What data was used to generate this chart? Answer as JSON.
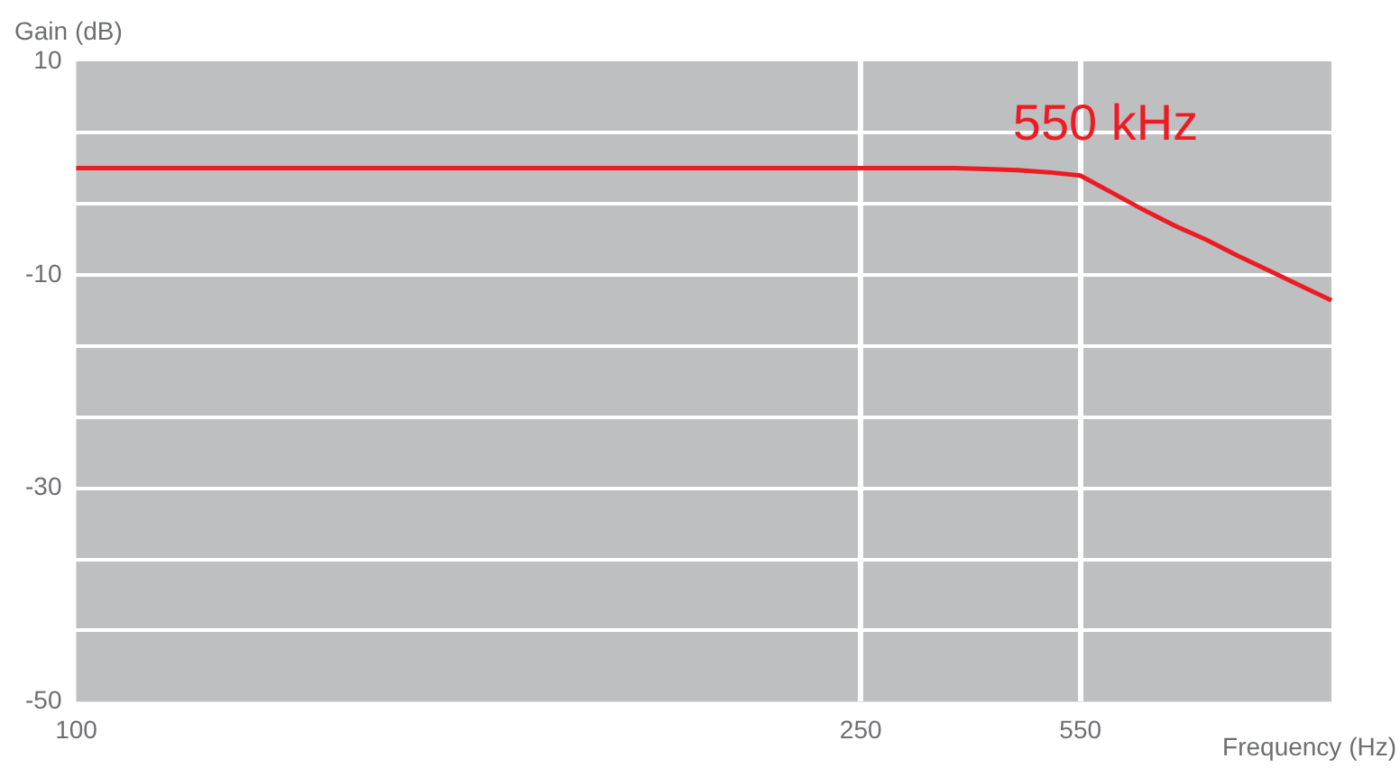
{
  "chart_data": {
    "type": "line",
    "xlabel": "Frequency (Hz)",
    "ylabel": "Gain (dB)",
    "categories": [
      "100",
      null,
      null,
      null,
      null,
      null,
      null,
      null,
      null,
      null,
      null,
      null,
      null,
      null,
      null,
      null,
      null,
      null,
      null,
      null,
      null,
      null,
      null,
      null,
      null,
      "250",
      null,
      null,
      null,
      null,
      null,
      null,
      "550",
      null,
      null,
      null,
      null,
      null,
      null,
      null,
      null
    ],
    "series": [
      {
        "color": "#ed1c24",
        "values": [
          0,
          0,
          0,
          0,
          0,
          0,
          0,
          0,
          0,
          0,
          0,
          0,
          0,
          0,
          0,
          0,
          0,
          0,
          0,
          0,
          0,
          0,
          0,
          0,
          0,
          0,
          0,
          0,
          0,
          -0.1,
          -0.2,
          -0.4,
          -0.7,
          -2.3,
          -3.9,
          -5.4,
          -6.7,
          -8.2,
          -9.6,
          -11.0,
          -12.4
        ]
      }
    ],
    "ylim": [
      -50,
      10
    ],
    "yticks": [
      {
        "value": 10,
        "label": "10"
      },
      {
        "value": 3.33,
        "label": null
      },
      {
        "value": -3.33,
        "label": null
      },
      {
        "value": -10,
        "label": "-10"
      },
      {
        "value": -16.67,
        "label": null
      },
      {
        "value": -23.33,
        "label": null
      },
      {
        "value": -30,
        "label": "-30"
      },
      {
        "value": -36.67,
        "label": null
      },
      {
        "value": -43.33,
        "label": null
      },
      {
        "value": -50,
        "label": "-50"
      }
    ],
    "grid": true,
    "annotations": [
      "550 kHz"
    ]
  }
}
